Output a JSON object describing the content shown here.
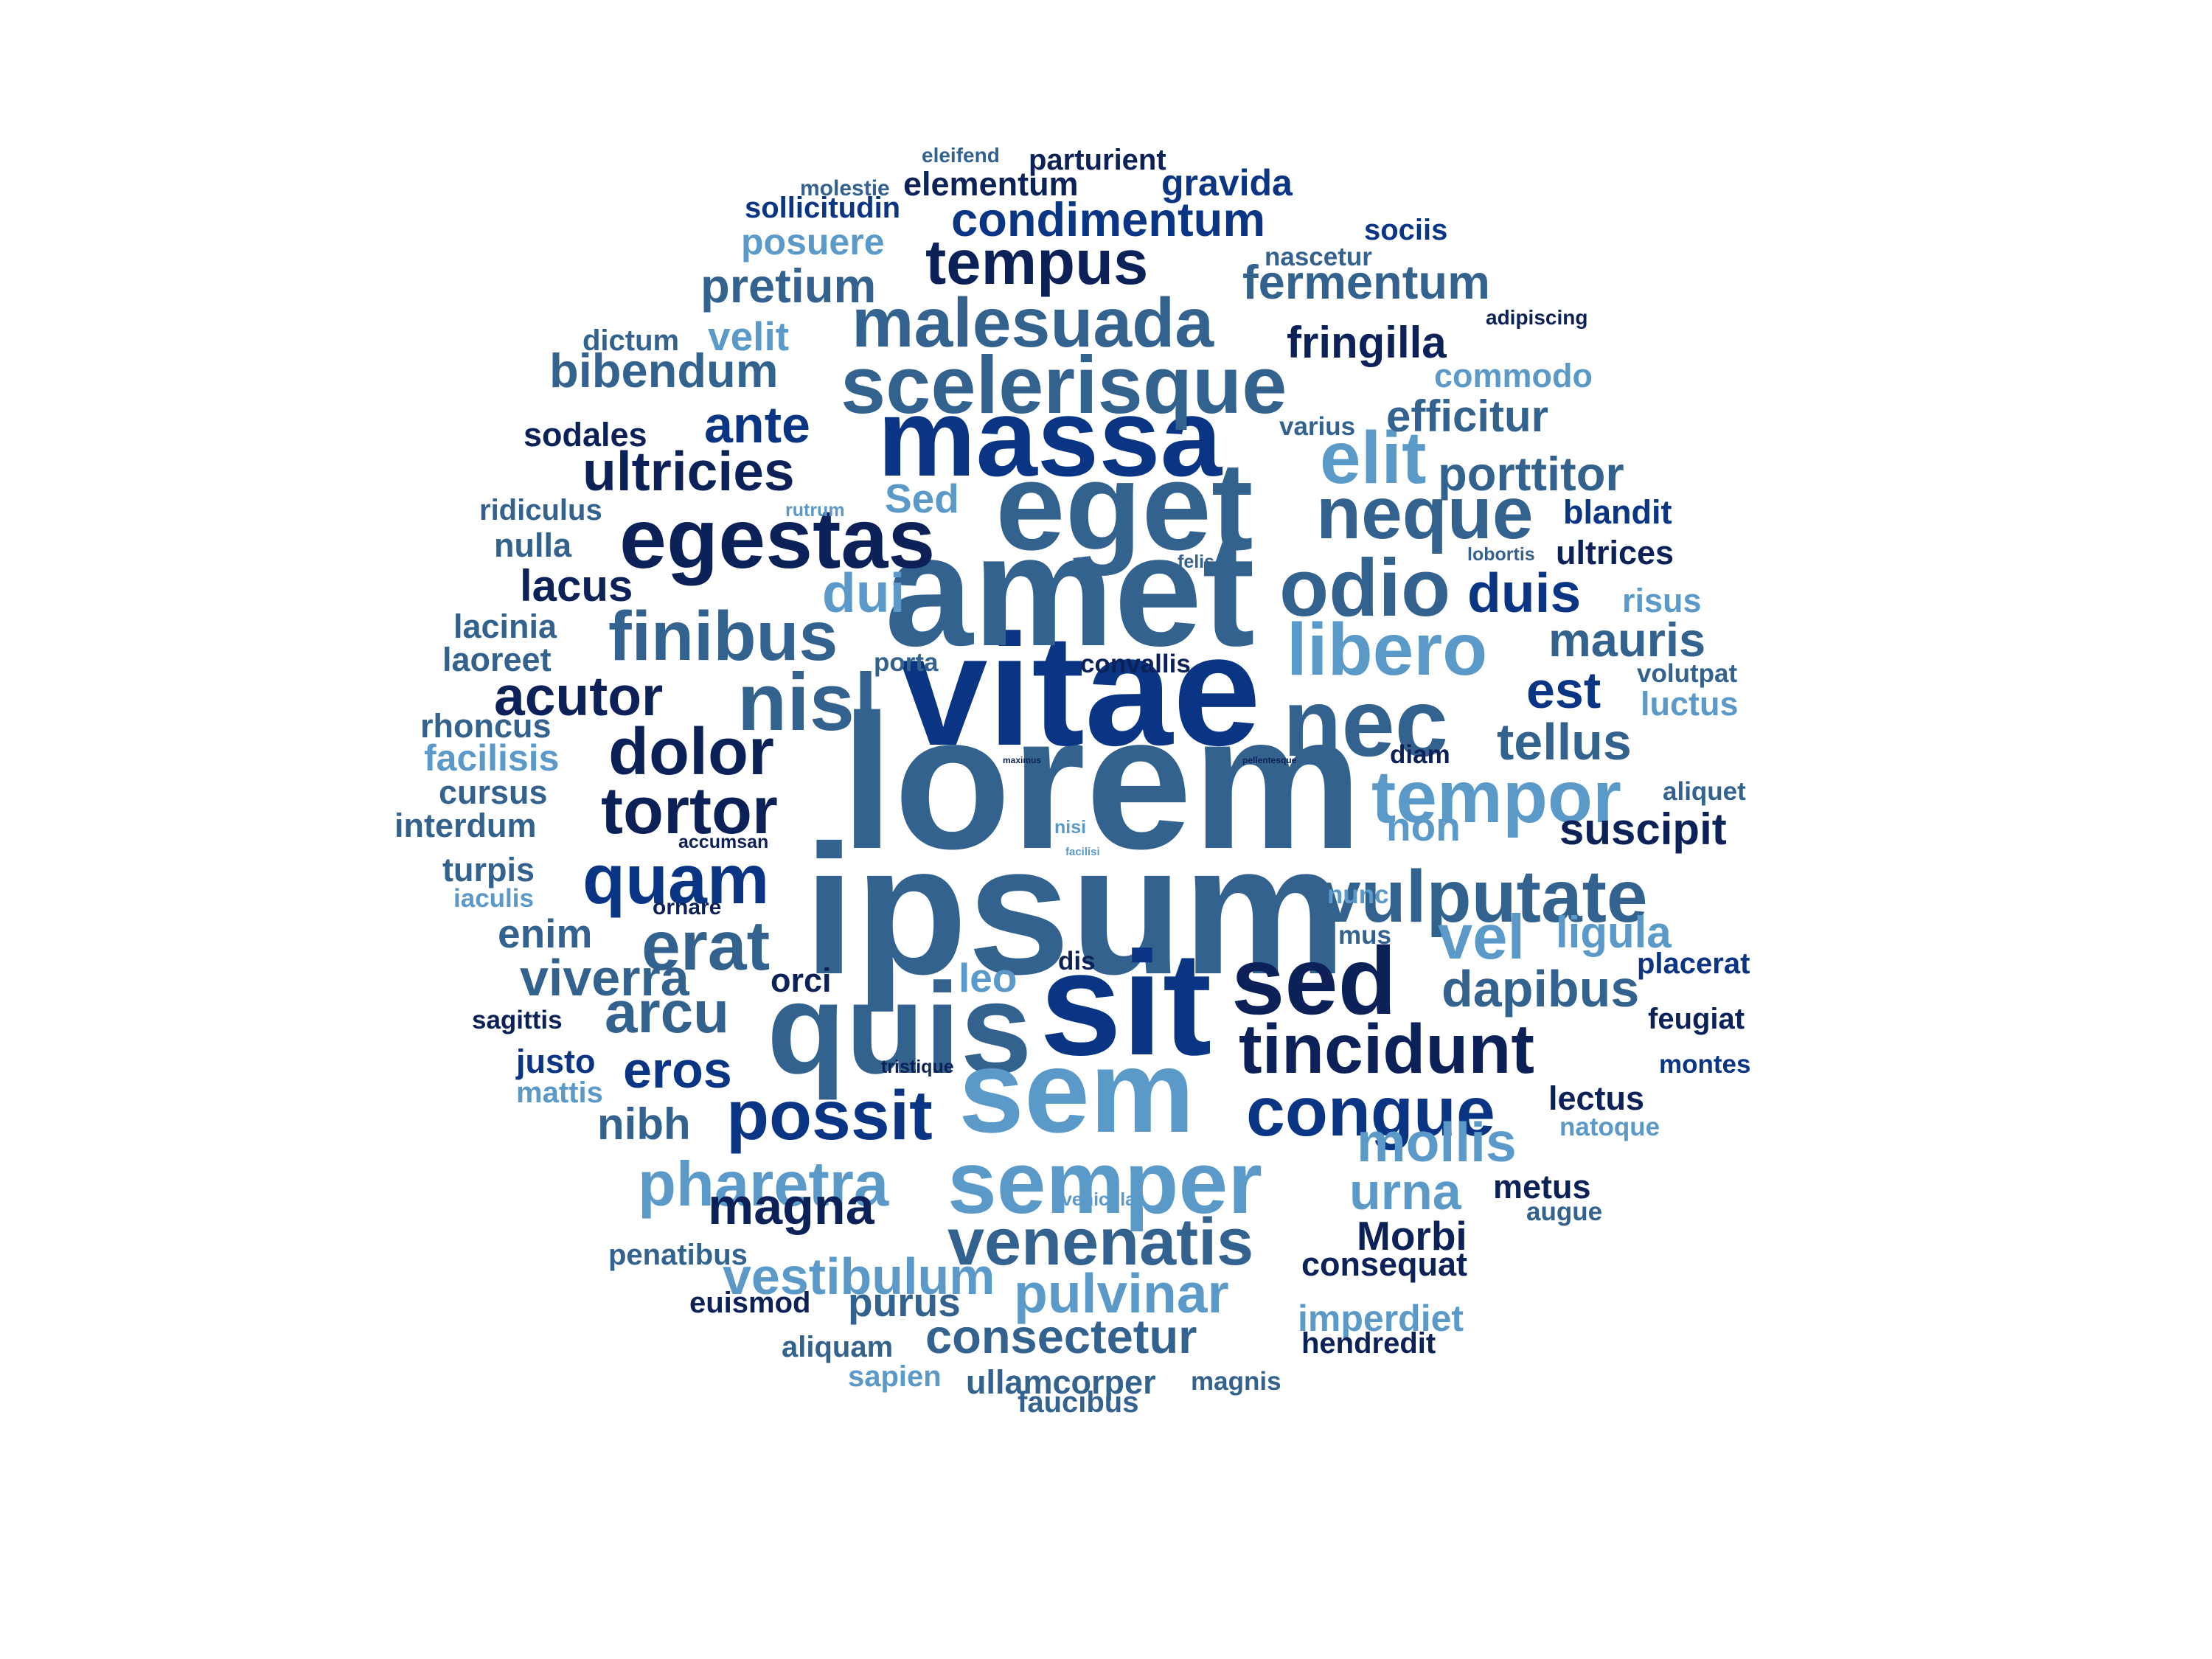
{
  "palette": {
    "navy": "#0b2158",
    "royal": "#0a3585",
    "steel": "#34628e",
    "sky": "#5b9ac8"
  },
  "words": [
    {
      "text": "lorem",
      "color": "steel"
    },
    {
      "text": "ipsum",
      "color": "steel"
    },
    {
      "text": "vitae",
      "color": "royal"
    },
    {
      "text": "amet",
      "color": "steel"
    },
    {
      "text": "eget",
      "color": "steel"
    },
    {
      "text": "massa",
      "color": "royal"
    },
    {
      "text": "sit",
      "color": "royal"
    },
    {
      "text": "quis",
      "color": "steel"
    },
    {
      "text": "sem",
      "color": "sky"
    },
    {
      "text": "sed",
      "color": "navy"
    },
    {
      "text": "scelerisque",
      "color": "steel"
    },
    {
      "text": "malesuada",
      "color": "steel"
    },
    {
      "text": "egestas",
      "color": "navy"
    },
    {
      "text": "nec",
      "color": "steel"
    },
    {
      "text": "odio",
      "color": "steel"
    },
    {
      "text": "libero",
      "color": "sky"
    },
    {
      "text": "semper",
      "color": "sky"
    },
    {
      "text": "congue",
      "color": "royal"
    },
    {
      "text": "tincidunt",
      "color": "navy"
    },
    {
      "text": "finibus",
      "color": "steel"
    },
    {
      "text": "nisl",
      "color": "steel"
    },
    {
      "text": "tempor",
      "color": "sky"
    },
    {
      "text": "vulputate",
      "color": "steel"
    },
    {
      "text": "neque",
      "color": "steel"
    },
    {
      "text": "elit",
      "color": "sky"
    },
    {
      "text": "tempus",
      "color": "navy"
    },
    {
      "text": "possit",
      "color": "royal"
    },
    {
      "text": "venenatis",
      "color": "steel"
    },
    {
      "text": "pharetra",
      "color": "sky"
    },
    {
      "text": "tortor",
      "color": "navy"
    },
    {
      "text": "dolor",
      "color": "navy"
    },
    {
      "text": "quam",
      "color": "royal"
    },
    {
      "text": "erat",
      "color": "steel"
    },
    {
      "text": "ultricies",
      "color": "navy"
    },
    {
      "text": "acutor",
      "color": "navy"
    },
    {
      "text": "condimentum",
      "color": "royal"
    },
    {
      "text": "fermentum",
      "color": "steel"
    },
    {
      "text": "pretium",
      "color": "steel"
    },
    {
      "text": "ante",
      "color": "royal"
    },
    {
      "text": "bibendum",
      "color": "steel"
    },
    {
      "text": "fringilla",
      "color": "navy"
    },
    {
      "text": "efficitur",
      "color": "steel"
    },
    {
      "text": "porttitor",
      "color": "steel"
    },
    {
      "text": "duis",
      "color": "royal"
    },
    {
      "text": "dui",
      "color": "sky"
    },
    {
      "text": "mauris",
      "color": "steel"
    },
    {
      "text": "est",
      "color": "royal"
    },
    {
      "text": "tellus",
      "color": "steel"
    },
    {
      "text": "vel",
      "color": "sky"
    },
    {
      "text": "ligula",
      "color": "sky"
    },
    {
      "text": "dapibus",
      "color": "steel"
    },
    {
      "text": "arcu",
      "color": "steel"
    },
    {
      "text": "viverra",
      "color": "steel"
    },
    {
      "text": "eros",
      "color": "royal"
    },
    {
      "text": "magna",
      "color": "navy"
    },
    {
      "text": "mollis",
      "color": "sky"
    },
    {
      "text": "urna",
      "color": "sky"
    },
    {
      "text": "Morbi",
      "color": "navy"
    },
    {
      "text": "pulvinar",
      "color": "sky"
    },
    {
      "text": "vestibulum",
      "color": "sky"
    },
    {
      "text": "consectetur",
      "color": "steel"
    },
    {
      "text": "suscipit",
      "color": "navy"
    },
    {
      "text": "lacus",
      "color": "navy"
    },
    {
      "text": "velit",
      "color": "sky"
    },
    {
      "text": "Sed",
      "color": "sky"
    },
    {
      "text": "leo",
      "color": "sky"
    },
    {
      "text": "nibh",
      "color": "steel"
    },
    {
      "text": "purus",
      "color": "steel"
    },
    {
      "text": "enim",
      "color": "steel"
    },
    {
      "text": "non",
      "color": "sky"
    },
    {
      "text": "sodales",
      "color": "navy"
    },
    {
      "text": "commodo",
      "color": "sky"
    },
    {
      "text": "elementum",
      "color": "navy"
    },
    {
      "text": "gravida",
      "color": "royal"
    },
    {
      "text": "posuere",
      "color": "sky"
    },
    {
      "text": "blandit",
      "color": "royal"
    },
    {
      "text": "ultrices",
      "color": "navy"
    },
    {
      "text": "lectus",
      "color": "navy"
    },
    {
      "text": "metus",
      "color": "navy"
    },
    {
      "text": "imperdiet",
      "color": "sky"
    },
    {
      "text": "consequat",
      "color": "navy"
    },
    {
      "text": "ullamcorper",
      "color": "steel"
    },
    {
      "text": "orci",
      "color": "navy"
    },
    {
      "text": "risus",
      "color": "sky"
    },
    {
      "text": "luctus",
      "color": "sky"
    },
    {
      "text": "nulla",
      "color": "steel"
    },
    {
      "text": "lacinia",
      "color": "steel"
    },
    {
      "text": "laoreet",
      "color": "steel"
    },
    {
      "text": "rhoncus",
      "color": "steel"
    },
    {
      "text": "facilisis",
      "color": "sky"
    },
    {
      "text": "cursus",
      "color": "steel"
    },
    {
      "text": "interdum",
      "color": "steel"
    },
    {
      "text": "turpis",
      "color": "steel"
    },
    {
      "text": "justo",
      "color": "royal"
    },
    {
      "text": "ridiculus",
      "color": "steel"
    },
    {
      "text": "dictum",
      "color": "steel"
    },
    {
      "text": "sollicitudin",
      "color": "royal"
    },
    {
      "text": "parturient",
      "color": "navy"
    },
    {
      "text": "sociis",
      "color": "royal"
    },
    {
      "text": "nascetur",
      "color": "steel"
    },
    {
      "text": "varius",
      "color": "steel"
    },
    {
      "text": "aliquet",
      "color": "steel"
    },
    {
      "text": "volutpat",
      "color": "steel"
    },
    {
      "text": "placerat",
      "color": "royal"
    },
    {
      "text": "feugiat",
      "color": "navy"
    },
    {
      "text": "montes",
      "color": "royal"
    },
    {
      "text": "natoque",
      "color": "sky"
    },
    {
      "text": "augue",
      "color": "steel"
    },
    {
      "text": "hendredit",
      "color": "navy"
    },
    {
      "text": "magnis",
      "color": "steel"
    },
    {
      "text": "faucibus",
      "color": "steel"
    },
    {
      "text": "sapien",
      "color": "sky"
    },
    {
      "text": "aliquam",
      "color": "steel"
    },
    {
      "text": "euismod",
      "color": "navy"
    },
    {
      "text": "penatibus",
      "color": "steel"
    },
    {
      "text": "mattis",
      "color": "sky"
    },
    {
      "text": "sagittis",
      "color": "navy"
    },
    {
      "text": "iaculis",
      "color": "sky"
    },
    {
      "text": "ornare",
      "color": "navy"
    },
    {
      "text": "accumsan",
      "color": "navy"
    },
    {
      "text": "convallis",
      "color": "navy"
    },
    {
      "text": "porta",
      "color": "steel"
    },
    {
      "text": "nunc",
      "color": "sky"
    },
    {
      "text": "mus",
      "color": "steel"
    },
    {
      "text": "dis",
      "color": "navy"
    },
    {
      "text": "diam",
      "color": "navy"
    },
    {
      "text": "tristique",
      "color": "navy"
    },
    {
      "text": "vehicula",
      "color": "sky"
    },
    {
      "text": "molestie",
      "color": "steel"
    },
    {
      "text": "eleifend",
      "color": "steel"
    },
    {
      "text": "adipiscing",
      "color": "navy"
    },
    {
      "text": "felis",
      "color": "steel"
    },
    {
      "text": "lobortis",
      "color": "steel"
    },
    {
      "text": "rutrum",
      "color": "sky"
    },
    {
      "text": "maximus",
      "color": "navy"
    },
    {
      "text": "pellentesque",
      "color": "navy"
    },
    {
      "text": "nisi",
      "color": "sky"
    },
    {
      "text": "facilisi",
      "color": "sky"
    }
  ]
}
